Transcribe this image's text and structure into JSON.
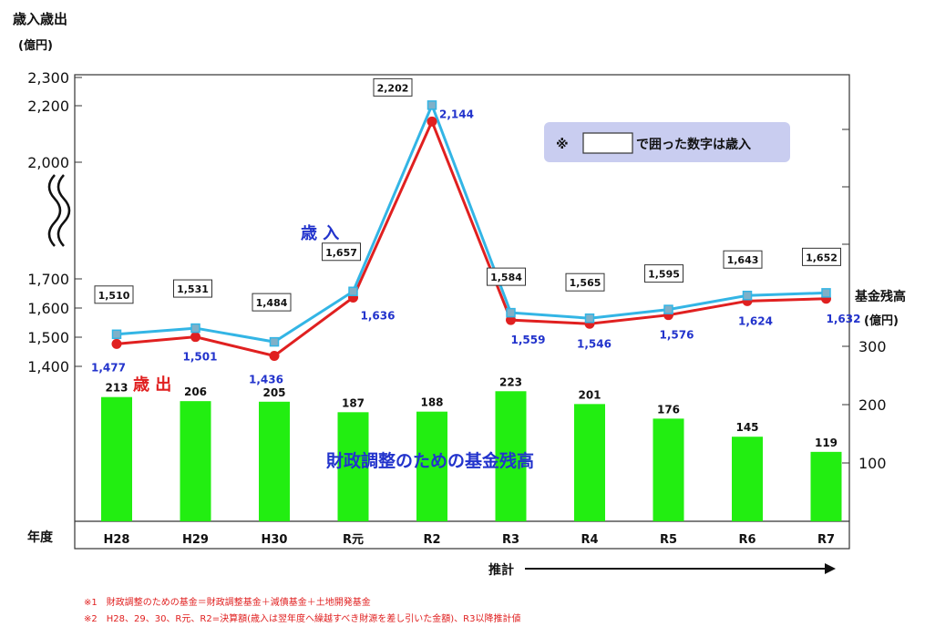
{
  "chart_data": {
    "type": "bar+line",
    "y_left_title": "歳入歳出",
    "y_left_unit": "(億円)",
    "y_right_title": "基金残高",
    "y_right_unit": "(億円)",
    "y_left_ticks_upper": [
      2300,
      2200,
      2000
    ],
    "y_left_ticks_lower": [
      1700,
      1600,
      1500,
      1400
    ],
    "y_left_tick_labels_upper": [
      "2,300",
      "2,200",
      "2,000"
    ],
    "y_left_tick_labels_lower": [
      "1,700",
      "1,600",
      "1,500",
      "1,400"
    ],
    "y_right_ticks": [
      100,
      200,
      300
    ],
    "x_axis_title": "年度",
    "categories": [
      "H28",
      "H29",
      "H30",
      "R元",
      "R2",
      "R3",
      "R4",
      "R5",
      "R6",
      "R7"
    ],
    "revenue": {
      "name": "歳 入",
      "values": [
        1510,
        1531,
        1484,
        1657,
        2202,
        1584,
        1565,
        1595,
        1643,
        1652
      ],
      "labels": [
        "1,510",
        "1,531",
        "1,484",
        "1,657",
        "2,202",
        "1,584",
        "1,565",
        "1,595",
        "1,643",
        "1,652"
      ],
      "color": "#33b5e5"
    },
    "expenditure": {
      "name": "歳 出",
      "values": [
        1477,
        1501,
        1436,
        1636,
        2144,
        1559,
        1546,
        1576,
        1624,
        1632
      ],
      "labels": [
        "1,477",
        "1,501",
        "1,436",
        "1,636",
        "2,144",
        "1,559",
        "1,546",
        "1,576",
        "1,624",
        "1,632"
      ],
      "color": "#e02020"
    },
    "fund": {
      "name": "財政調整のための基金残高",
      "values": [
        213,
        206,
        205,
        187,
        188,
        223,
        201,
        176,
        145,
        119
      ],
      "labels": [
        "213",
        "206",
        "205",
        "187",
        "188",
        "223",
        "201",
        "176",
        "145",
        "119"
      ],
      "color": "#22ee11"
    },
    "legend_note_prefix": "※",
    "legend_note_suffix": "で囲った数字は歳入",
    "estimate_label": "推計",
    "footnote_1": "※1　財政調整のための基金＝財政調整基金＋減債基金＋土地開発基金",
    "footnote_2": "※2　H28、29、30、R元、R2=決算額(歳入は翌年度へ繰越すべき財源を差し引いた金額)、R3以降推計値"
  }
}
